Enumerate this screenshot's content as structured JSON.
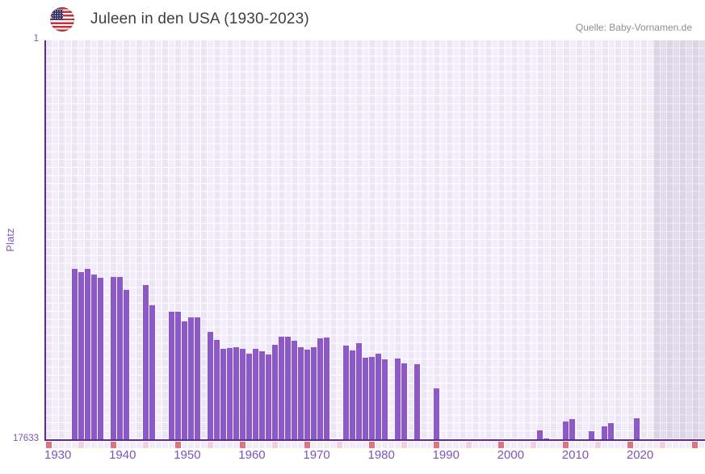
{
  "header": {
    "title": "Juleen in den USA (1930-2023)",
    "source": "Quelle: Baby-Vornamen.de",
    "flag_icon": "us-flag-icon"
  },
  "chart_data": {
    "type": "bar",
    "title": "Juleen in den USA (1930-2023)",
    "source": "Quelle: Baby-Vornamen.de",
    "ylabel": "Platz",
    "y_axis": {
      "top_label": "1",
      "bottom_label": "17633",
      "min": 1,
      "max": 17633,
      "inverted": true,
      "grid": true
    },
    "x_axis": {
      "first_year": 1930,
      "last_grid_year": 2031,
      "data_end_year": 2023,
      "tick_labels": [
        "1930",
        "1940",
        "1950",
        "1960",
        "1970",
        "1980",
        "1990",
        "2000",
        "2010",
        "2020"
      ],
      "tick_years": [
        1930,
        1940,
        1950,
        1960,
        1970,
        1980,
        1990,
        2000,
        2010,
        2020
      ],
      "major_tick_every": 10,
      "minor_tick_every": 5,
      "future_region_start_year": 2024
    },
    "legend": null,
    "series": [
      {
        "name": "Platz",
        "points": [
          {
            "year": 1934,
            "platz": 10113
          },
          {
            "year": 1935,
            "platz": 10245
          },
          {
            "year": 1936,
            "platz": 10113
          },
          {
            "year": 1937,
            "platz": 10352
          },
          {
            "year": 1938,
            "platz": 10495
          },
          {
            "year": 1940,
            "platz": 10470
          },
          {
            "year": 1941,
            "platz": 10470
          },
          {
            "year": 1942,
            "platz": 11041
          },
          {
            "year": 1945,
            "platz": 10816
          },
          {
            "year": 1946,
            "platz": 11719
          },
          {
            "year": 1949,
            "platz": 11994
          },
          {
            "year": 1950,
            "platz": 11994
          },
          {
            "year": 1951,
            "platz": 12412
          },
          {
            "year": 1952,
            "platz": 12255
          },
          {
            "year": 1953,
            "platz": 12255
          },
          {
            "year": 1955,
            "platz": 12875
          },
          {
            "year": 1956,
            "platz": 13243
          },
          {
            "year": 1957,
            "platz": 13625
          },
          {
            "year": 1958,
            "platz": 13600
          },
          {
            "year": 1959,
            "platz": 13564
          },
          {
            "year": 1960,
            "platz": 13625
          },
          {
            "year": 1961,
            "platz": 13839
          },
          {
            "year": 1962,
            "platz": 13625
          },
          {
            "year": 1963,
            "platz": 13743
          },
          {
            "year": 1964,
            "platz": 13896
          },
          {
            "year": 1965,
            "platz": 13447
          },
          {
            "year": 1966,
            "platz": 13090
          },
          {
            "year": 1967,
            "platz": 13100
          },
          {
            "year": 1968,
            "platz": 13279
          },
          {
            "year": 1969,
            "platz": 13564
          },
          {
            "year": 1970,
            "platz": 13671
          },
          {
            "year": 1971,
            "platz": 13553
          },
          {
            "year": 1972,
            "platz": 13182
          },
          {
            "year": 1973,
            "platz": 13125
          },
          {
            "year": 1976,
            "platz": 13493
          },
          {
            "year": 1977,
            "platz": 13718
          },
          {
            "year": 1978,
            "platz": 13386
          },
          {
            "year": 1979,
            "platz": 14017
          },
          {
            "year": 1980,
            "platz": 13982
          },
          {
            "year": 1981,
            "platz": 13839
          },
          {
            "year": 1982,
            "platz": 14100
          },
          {
            "year": 1984,
            "platz": 14053
          },
          {
            "year": 1985,
            "platz": 14278
          },
          {
            "year": 1987,
            "platz": 14303
          },
          {
            "year": 1990,
            "platz": 15385
          },
          {
            "year": 2006,
            "platz": 17240
          },
          {
            "year": 2007,
            "platz": 17586
          },
          {
            "year": 2010,
            "platz": 16837
          },
          {
            "year": 2011,
            "platz": 16740
          },
          {
            "year": 2014,
            "platz": 17265
          },
          {
            "year": 2016,
            "platz": 17062
          },
          {
            "year": 2017,
            "platz": 16919
          },
          {
            "year": 2021,
            "platz": 16694
          }
        ]
      }
    ],
    "colors": {
      "bar": "#8d59c6",
      "axis": "#5b2c8e",
      "grid_cell": "#ebe5f4",
      "grid_cell_alt": "#f2edfa",
      "grid_line": "#ffffff",
      "future_band": "rgba(88,76,118,0.10)",
      "tick_cell_default": "#f1ecf8",
      "tick_cell_minor": "#f2cfda",
      "tick_cell_major": "#e1737e",
      "axis_label": "#7d55b8",
      "title": "#3f3f3f",
      "source": "#8f8f8f"
    }
  }
}
